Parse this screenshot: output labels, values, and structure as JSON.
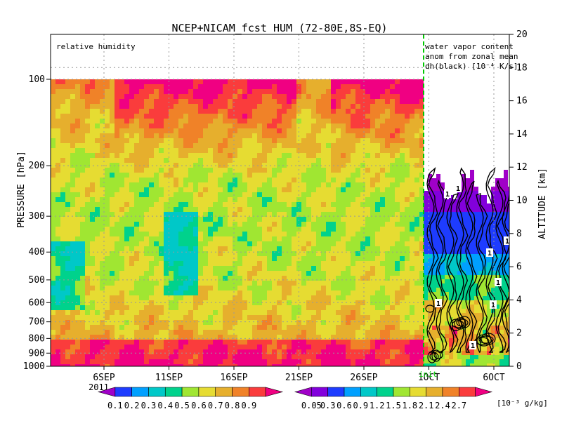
{
  "chart_data": {
    "type": "heatmap",
    "title": "NCEP+NICAM_fcst HUM (72-80E,8S-EQ)",
    "left_panel_label": "relative humidity",
    "right_panel_label_lines": [
      "water vapor content",
      "anom from zonal mean",
      "dh(black) [10⁻⁴ K/s]"
    ],
    "ylabel_left": "PRESSURE [hPa]",
    "ylabel_right": "ALTITUDE [km]",
    "pressure_ticks": [
      100,
      200,
      300,
      400,
      500,
      600,
      700,
      800,
      900,
      1000
    ],
    "altitude_ticks": [
      0,
      2,
      4,
      6,
      8,
      10,
      12,
      14,
      16,
      18,
      20
    ],
    "x_ticks": [
      "6SEP",
      "11SEP",
      "16SEP",
      "21SEP",
      "26SEP",
      "1OCT",
      "6OCT"
    ],
    "year_label": "2011",
    "init_label": "init",
    "contour_label": "1",
    "colorbar_left": {
      "levels": [
        "0.1",
        "0.2",
        "0.3",
        "0.4",
        "0.5",
        "0.6",
        "0.7",
        "0.8",
        "0.9"
      ],
      "colors": [
        "#a000c8",
        "#1e3cff",
        "#00a0ff",
        "#00c8c8",
        "#00d28c",
        "#a0e632",
        "#e6dc32",
        "#e6af2d",
        "#f08228",
        "#fa3c3c",
        "#f00082"
      ]
    },
    "colorbar_right": {
      "levels": [
        "0.05",
        "0.3",
        "0.6",
        "0.9",
        "1.2",
        "1.5",
        "1.8",
        "2.1",
        "2.4",
        "2.7"
      ],
      "unit": "[10⁻³ g/kg]",
      "colors": [
        "#a000c8",
        "#8200dc",
        "#1e3cff",
        "#00a0ff",
        "#00c8c8",
        "#00d28c",
        "#a0e632",
        "#e6dc32",
        "#e6af2d",
        "#f08228",
        "#fa3c3c",
        "#f00082"
      ]
    }
  }
}
